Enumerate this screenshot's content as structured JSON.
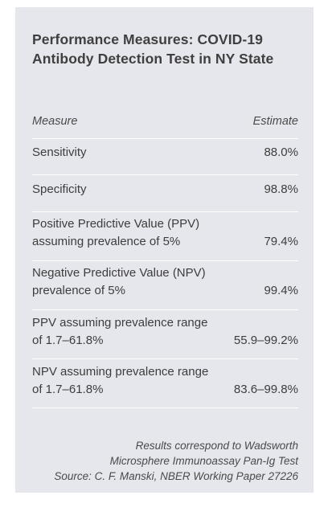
{
  "title": {
    "line1": "Performance Measures: COVID-19",
    "line2": "Antibody Detection Test in NY State"
  },
  "table": {
    "headers": {
      "measure": "Measure",
      "estimate": "Estimate"
    },
    "rows": [
      {
        "label": "Sensitivity",
        "value": "88.0%"
      },
      {
        "label": "Specificity",
        "value": "98.8%"
      },
      {
        "label": "Positive Predictive Value (PPV) assuming prevalence of 5%",
        "value": "79.4%"
      },
      {
        "label": "Negative Predictive Value (NPV) prevalence of 5%",
        "value": "99.4%"
      },
      {
        "label": "PPV assuming prevalence range of 1.7–61.8%",
        "value": "55.9–99.2%"
      },
      {
        "label": "NPV assuming prevalence range of 1.7–61.8%",
        "value": "83.6–99.8%"
      }
    ]
  },
  "footer": {
    "line1": "Results correspond to Wadsworth",
    "line2": "Microsphere Immunoassay Pan-Ig Test",
    "line3": "Source: C. F. Manski, NBER Working Paper 27226"
  }
}
